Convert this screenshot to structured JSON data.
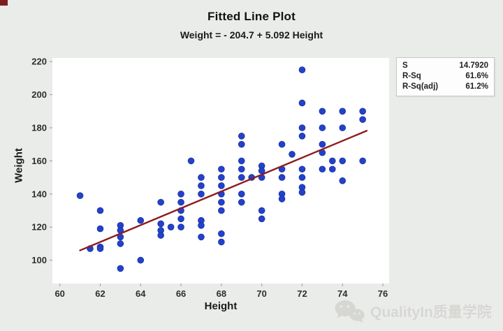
{
  "page": {
    "watermark_text": "QualityIn质量学院"
  },
  "chart_data": {
    "type": "scatter",
    "title": "Fitted Line Plot",
    "subtitle": "Weight = - 204.7 + 5.092 Height",
    "xlabel": "Height",
    "ylabel": "Weight",
    "x_ticks": [
      60,
      62,
      64,
      66,
      68,
      70,
      72,
      74,
      76
    ],
    "y_ticks": [
      100,
      120,
      140,
      160,
      180,
      200,
      220
    ],
    "xlim": [
      59.63,
      76.31
    ],
    "ylim": [
      85.9,
      222.2
    ],
    "grid": false,
    "legend_position": "top-right",
    "fit_line": {
      "intercept": -204.7,
      "slope": 5.092,
      "x_start": 61.0,
      "x_end": 75.2
    },
    "stats_rows": [
      {
        "label": "S",
        "value": "14.7920"
      },
      {
        "label": "R-Sq",
        "value": "61.6%"
      },
      {
        "label": "R-Sq(adj)",
        "value": "61.2%"
      }
    ],
    "colors": {
      "point_fill": "#2342cb",
      "point_edge": "#1a2f9e",
      "line": "#8b1d1d",
      "background": "#eaecea",
      "plot_background": "#ffffff",
      "tick_text": "#2e2e2e",
      "tick_mark": "#9a9a9a"
    },
    "points": [
      [
        61,
        139
      ],
      [
        61.5,
        107
      ],
      [
        62,
        130
      ],
      [
        62,
        119
      ],
      [
        62,
        108
      ],
      [
        62,
        107
      ],
      [
        63,
        121
      ],
      [
        63,
        118
      ],
      [
        63,
        114
      ],
      [
        63,
        110
      ],
      [
        63,
        95
      ],
      [
        64,
        124
      ],
      [
        64,
        100
      ],
      [
        65,
        135
      ],
      [
        65,
        122
      ],
      [
        65,
        118
      ],
      [
        65,
        115
      ],
      [
        65.5,
        120
      ],
      [
        66,
        140
      ],
      [
        66,
        135
      ],
      [
        66,
        130
      ],
      [
        66,
        125
      ],
      [
        66,
        120
      ],
      [
        66.5,
        160
      ],
      [
        67,
        150
      ],
      [
        67,
        145
      ],
      [
        67,
        140
      ],
      [
        67,
        124
      ],
      [
        67,
        121
      ],
      [
        67,
        114
      ],
      [
        68,
        155
      ],
      [
        68,
        150
      ],
      [
        68,
        145
      ],
      [
        68,
        140
      ],
      [
        68,
        135
      ],
      [
        68,
        130
      ],
      [
        68,
        116
      ],
      [
        68,
        111
      ],
      [
        69,
        175
      ],
      [
        69,
        170
      ],
      [
        69,
        160
      ],
      [
        69,
        155
      ],
      [
        69,
        150
      ],
      [
        69,
        140
      ],
      [
        69,
        135
      ],
      [
        69.5,
        150
      ],
      [
        70,
        157
      ],
      [
        70,
        154
      ],
      [
        70,
        150
      ],
      [
        70,
        130
      ],
      [
        70,
        125
      ],
      [
        71,
        170
      ],
      [
        71,
        155
      ],
      [
        71,
        150
      ],
      [
        71,
        140
      ],
      [
        71,
        137
      ],
      [
        71.5,
        164
      ],
      [
        72,
        215
      ],
      [
        72,
        195
      ],
      [
        72,
        180
      ],
      [
        72,
        175
      ],
      [
        72,
        155
      ],
      [
        72,
        150
      ],
      [
        72,
        144
      ],
      [
        72,
        141
      ],
      [
        73,
        190
      ],
      [
        73,
        180
      ],
      [
        73,
        170
      ],
      [
        73,
        165
      ],
      [
        73,
        155
      ],
      [
        73.5,
        160
      ],
      [
        73.5,
        155
      ],
      [
        74,
        190
      ],
      [
        74,
        180
      ],
      [
        74,
        160
      ],
      [
        74,
        148
      ],
      [
        75,
        190
      ],
      [
        75,
        185
      ],
      [
        75,
        160
      ]
    ]
  }
}
